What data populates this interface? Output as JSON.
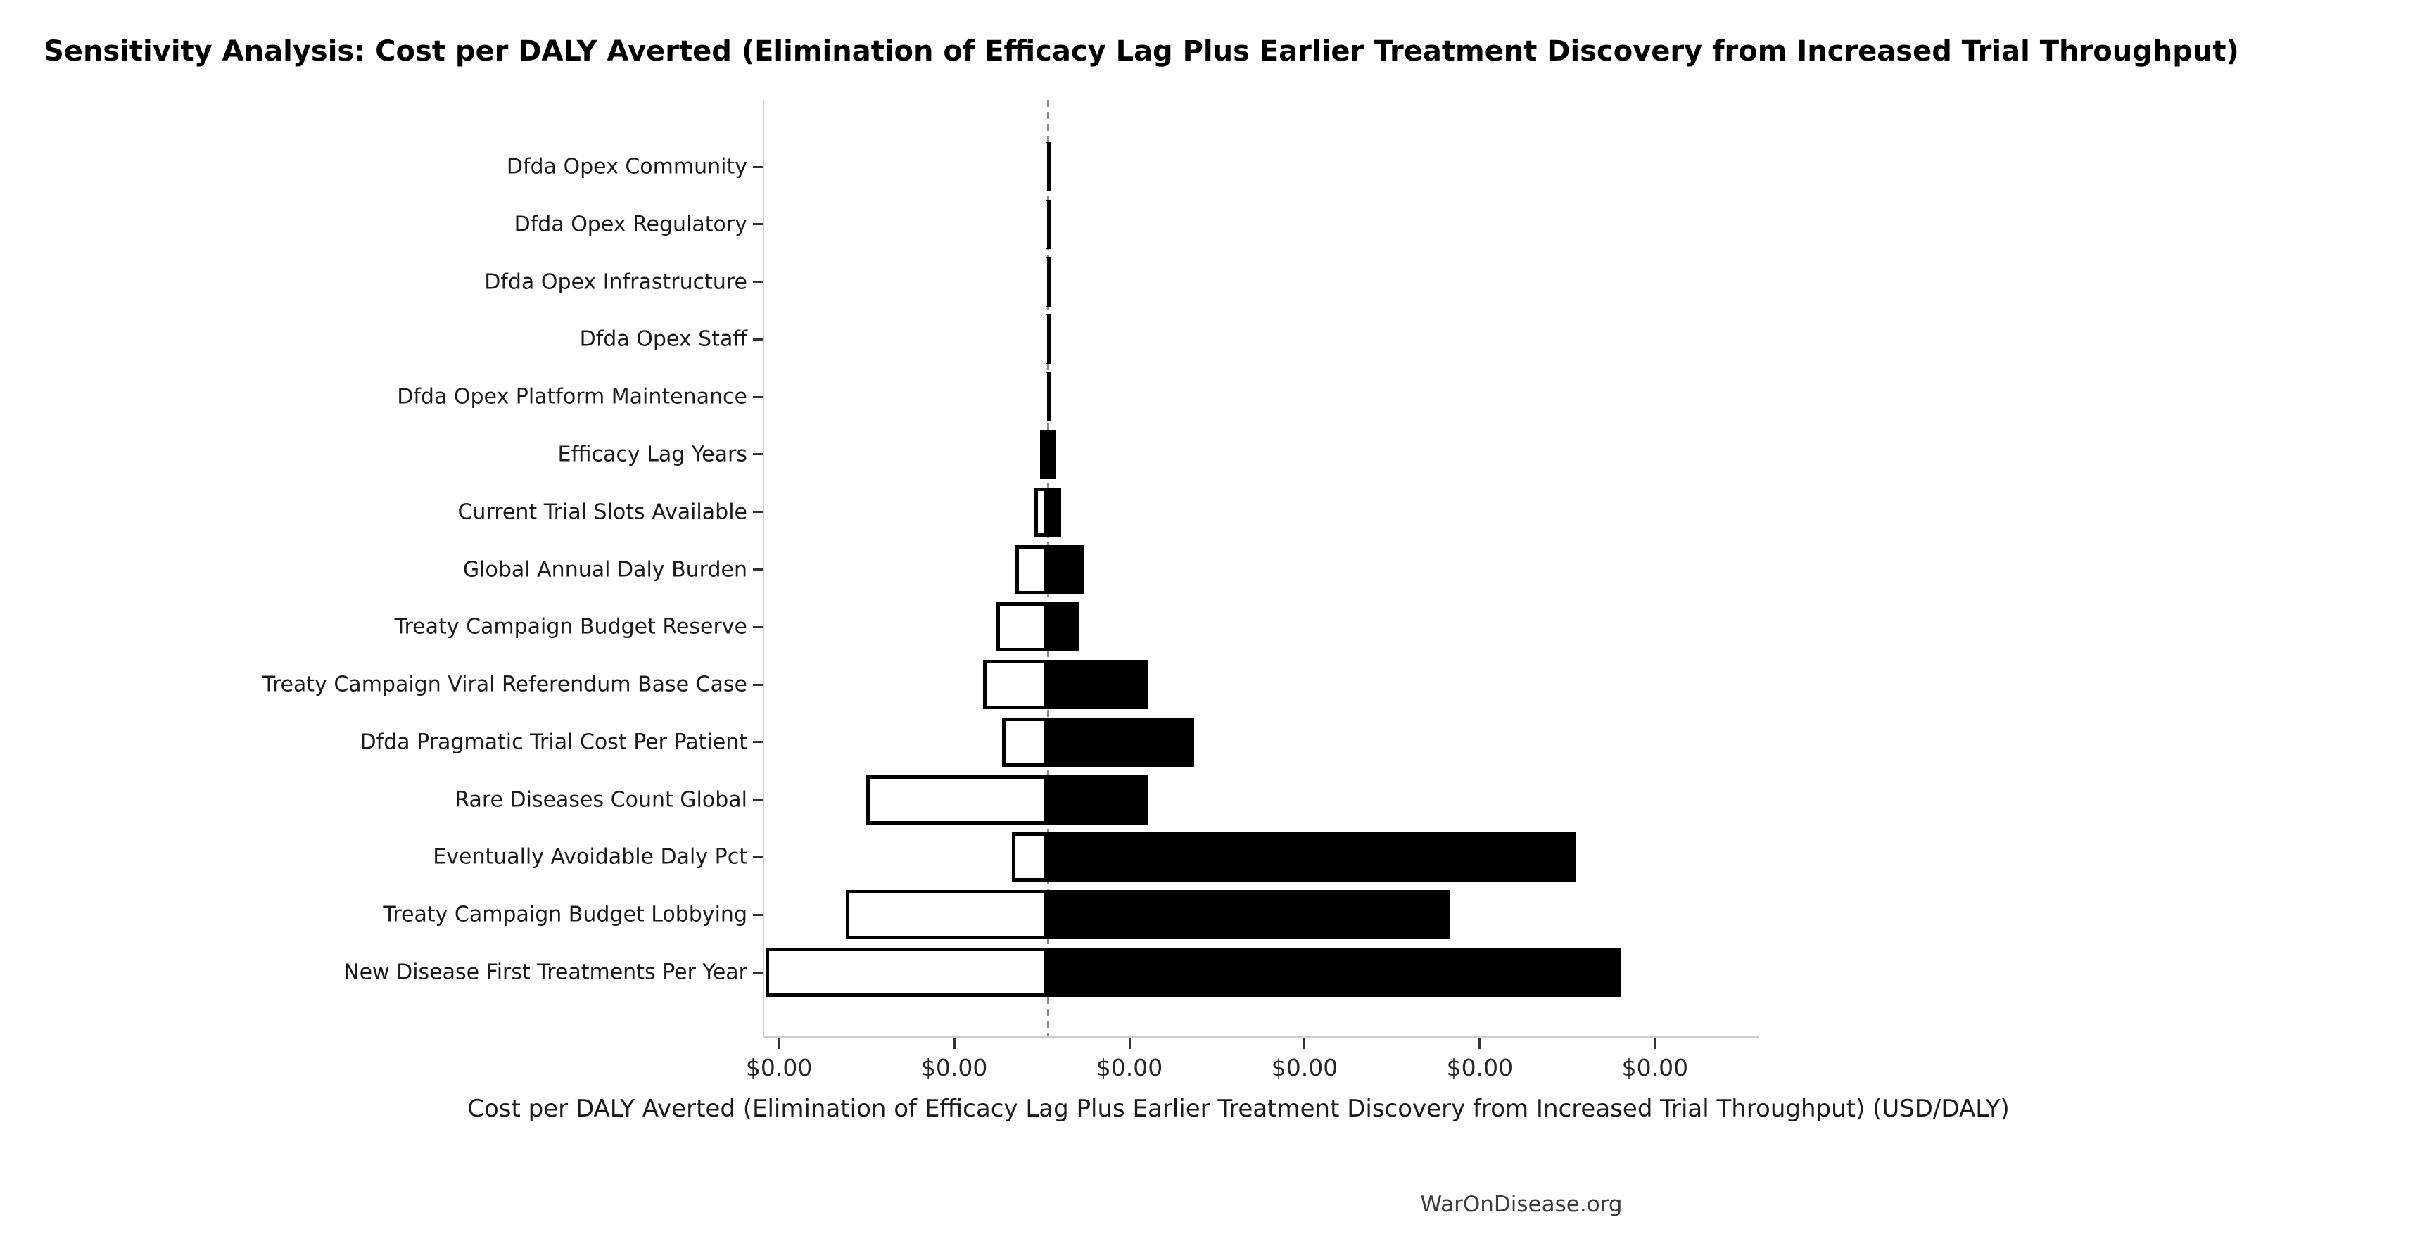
{
  "footer": {
    "watermark": "WarOnDisease.org"
  },
  "colors": {
    "bar_high_fill": "#000000",
    "bar_low_fill": "#ffffff",
    "bar_edge": "#000000",
    "baseline": "#8a8a8a",
    "spine": "#cdcdcd",
    "tick": "#333333",
    "text": "#1a1a1a",
    "muted_text": "#3d3d3d"
  },
  "chart_data": {
    "type": "bar",
    "variant": "tornado-sensitivity",
    "orientation": "horizontal",
    "title": "Sensitivity Analysis: Cost per DALY Averted (Elimination of Efficacy Lag Plus Earlier Treatment Discovery from Increased Trial Throughput)",
    "xlabel": "Cost per DALY Averted (Elimination of Efficacy Lag Plus Earlier Treatment Discovery from Increased Trial Throughput) (USD/DALY)",
    "ylabel": "",
    "grid": false,
    "legend": false,
    "baseline_units": 0,
    "baseline_style": "dashed-gray-vertical",
    "xlim_units": [
      -1.62,
      4.06
    ],
    "x_tick_positions_units": [
      -1.535,
      -0.535,
      0.465,
      1.465,
      2.465,
      3.465
    ],
    "x_tick_labels": [
      "$0.00",
      "$0.00",
      "$0.00",
      "$0.00",
      "$0.00",
      "$0.00"
    ],
    "categories": [
      "Dfda Opex Community",
      "Dfda Opex Regulatory",
      "Dfda Opex Infrastructure",
      "Dfda Opex Staff",
      "Dfda Opex Platform Maintenance",
      "Efficacy Lag Years",
      "Current Trial Slots Available",
      "Global Annual Daly Burden",
      "Treaty Campaign Budget Reserve",
      "Treaty Campaign Viral Referendum Base Case",
      "Dfda Pragmatic Trial Cost Per Patient",
      "Rare Diseases Count Global",
      "Eventually Avoidable Daly Pct",
      "Treaty Campaign Budget Lobbying",
      "New Disease First Treatments Per Year"
    ],
    "series": [
      {
        "name": "low-extent (white bar, left of base case)",
        "style": "white-filled-black-edge",
        "values_units": [
          -0.012,
          -0.012,
          -0.012,
          -0.012,
          -0.012,
          -0.044,
          -0.076,
          -0.185,
          -0.293,
          -0.37,
          -0.261,
          -1.037,
          -0.205,
          -1.153,
          -1.611
        ]
      },
      {
        "name": "high-extent (black bar, right of base case)",
        "style": "black-filled",
        "values_units": [
          0.016,
          0.016,
          0.016,
          0.016,
          0.016,
          0.044,
          0.076,
          0.205,
          0.181,
          0.571,
          0.836,
          0.575,
          3.017,
          2.298,
          3.274
        ]
      }
    ]
  }
}
